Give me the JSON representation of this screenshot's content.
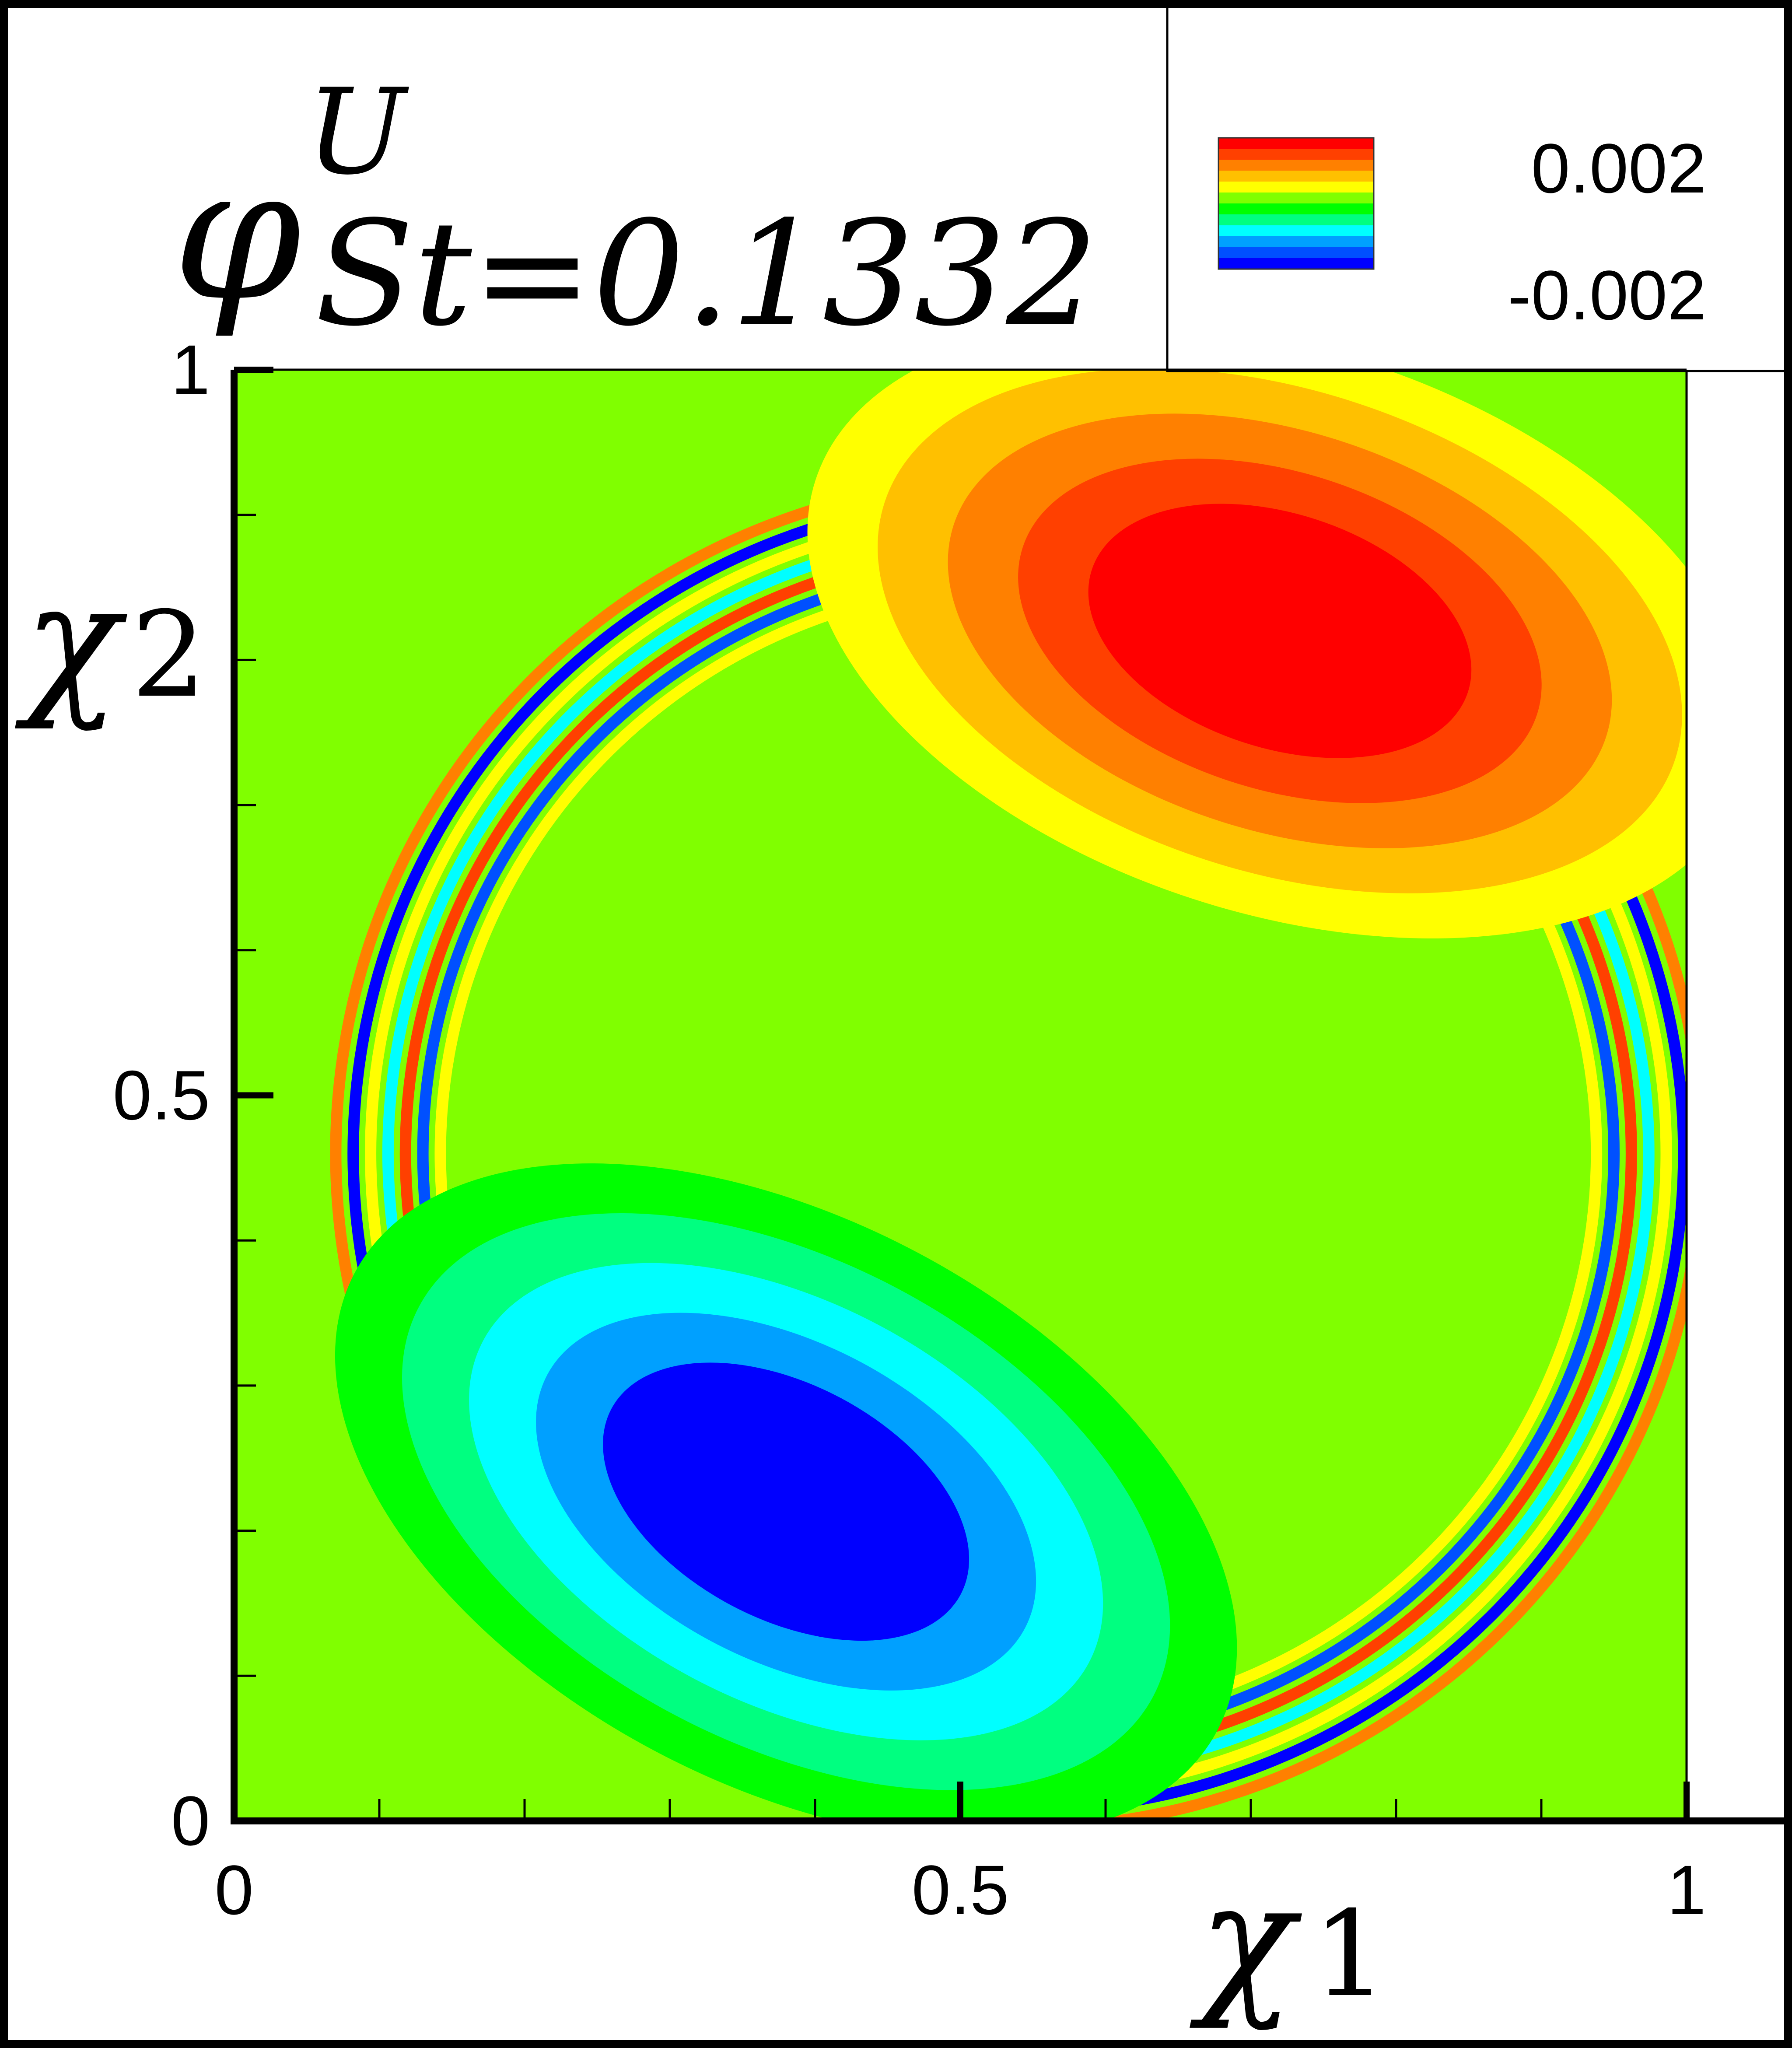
{
  "chart_data": {
    "type": "heatmap",
    "title": {
      "symbol": "φ",
      "superscript": "U",
      "subscript": "St=0.1332"
    },
    "xlabel": {
      "symbol": "χ",
      "subscript": "1"
    },
    "ylabel": {
      "symbol": "χ",
      "subscript": "2"
    },
    "xlim": [
      0,
      1
    ],
    "ylim": [
      0,
      1
    ],
    "x_ticks": [
      {
        "value": 0,
        "label": "0"
      },
      {
        "value": 0.5,
        "label": "0.5"
      },
      {
        "value": 1,
        "label": "1"
      }
    ],
    "y_ticks": [
      {
        "value": 0,
        "label": "0"
      },
      {
        "value": 0.5,
        "label": "0.5"
      },
      {
        "value": 1,
        "label": "1"
      }
    ],
    "minor_tick_step": 0.1,
    "colorbar": {
      "max_label": "0.002",
      "min_label": "-0.002",
      "range": [
        -0.002,
        0.002
      ],
      "colors": [
        "#0000ff",
        "#0050ff",
        "#00a0ff",
        "#00ffff",
        "#00ff80",
        "#00ff00",
        "#80ff00",
        "#ffff00",
        "#ffc000",
        "#ff8000",
        "#ff4000",
        "#ff0000"
      ]
    },
    "background_value": 0.0,
    "features": [
      {
        "kind": "positive-lobe",
        "center": [
          0.72,
          0.82
        ],
        "peak": 0.002
      },
      {
        "kind": "negative-lobe",
        "center": [
          0.38,
          0.22
        ],
        "peak": -0.002
      },
      {
        "kind": "shear-layer",
        "description": "thin alternating bands along the outer edge of the primary vortex"
      }
    ]
  }
}
